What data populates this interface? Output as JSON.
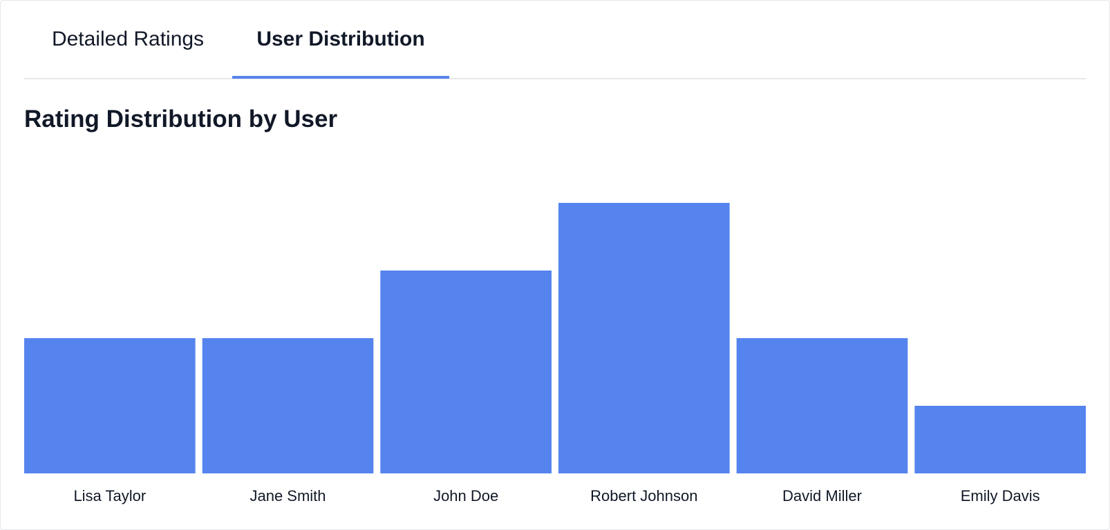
{
  "tabs": [
    {
      "label": "Detailed Ratings",
      "active": false
    },
    {
      "label": "User Distribution",
      "active": true
    }
  ],
  "colors": {
    "accent": "#5584ee",
    "divider": "#e5e7eb",
    "text": "#111827"
  },
  "chart_data": {
    "type": "bar",
    "title": "Rating Distribution by User",
    "xlabel": "",
    "ylabel": "",
    "categories": [
      "Lisa Taylor",
      "Jane Smith",
      "John Doe",
      "Robert Johnson",
      "David Miller",
      "Emily Davis"
    ],
    "values": [
      2,
      2,
      3,
      4,
      2,
      1
    ],
    "ylim": [
      0,
      4
    ],
    "grid": false,
    "legend": false
  }
}
